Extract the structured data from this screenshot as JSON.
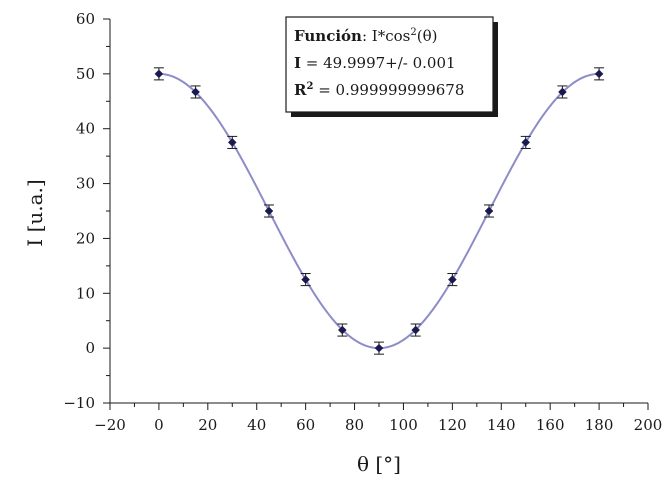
{
  "chart_data": {
    "type": "scatter",
    "xlabel": "θ [°]",
    "ylabel": "I [u.a.]",
    "xlim": [
      -20,
      200
    ],
    "ylim": [
      -10,
      60
    ],
    "xticks": [
      "−20",
      "0",
      "20",
      "40",
      "60",
      "80",
      "100",
      "120",
      "140",
      "160",
      "180",
      "200"
    ],
    "yticks": [
      "−10",
      "0",
      "10",
      "20",
      "30",
      "40",
      "50",
      "60"
    ],
    "grid": false,
    "series": [
      {
        "kind": "points-with-errorbars",
        "color": "#1a1a4d",
        "x": [
          0,
          15,
          30,
          45,
          60,
          75,
          90,
          105,
          120,
          135,
          150,
          165,
          180
        ],
        "y": [
          50.0,
          46.7,
          37.5,
          25.0,
          12.5,
          3.3,
          0.0,
          3.3,
          12.5,
          25.0,
          37.5,
          46.7,
          50.0
        ],
        "yerr": [
          1.1,
          1.1,
          1.1,
          1.1,
          1.1,
          1.1,
          1.1,
          1.1,
          1.1,
          1.1,
          1.1,
          1.1,
          1.1
        ]
      },
      {
        "kind": "fit-curve",
        "color": "#8c8cc8",
        "function": "I*cos^2(θ)",
        "I": 49.9997
      }
    ],
    "legend": {
      "placement": "top-center",
      "line1_bold": "Función",
      "line1_rest": ": I*cos",
      "line1_sup": "2",
      "line1_tail": "(θ)",
      "line2_bold": "I",
      "line2_rest": " = 49.9997+/- 0.001",
      "line3_bold": "R",
      "line3_sup": "2",
      "line3_rest": " = 0.999999999678"
    }
  }
}
